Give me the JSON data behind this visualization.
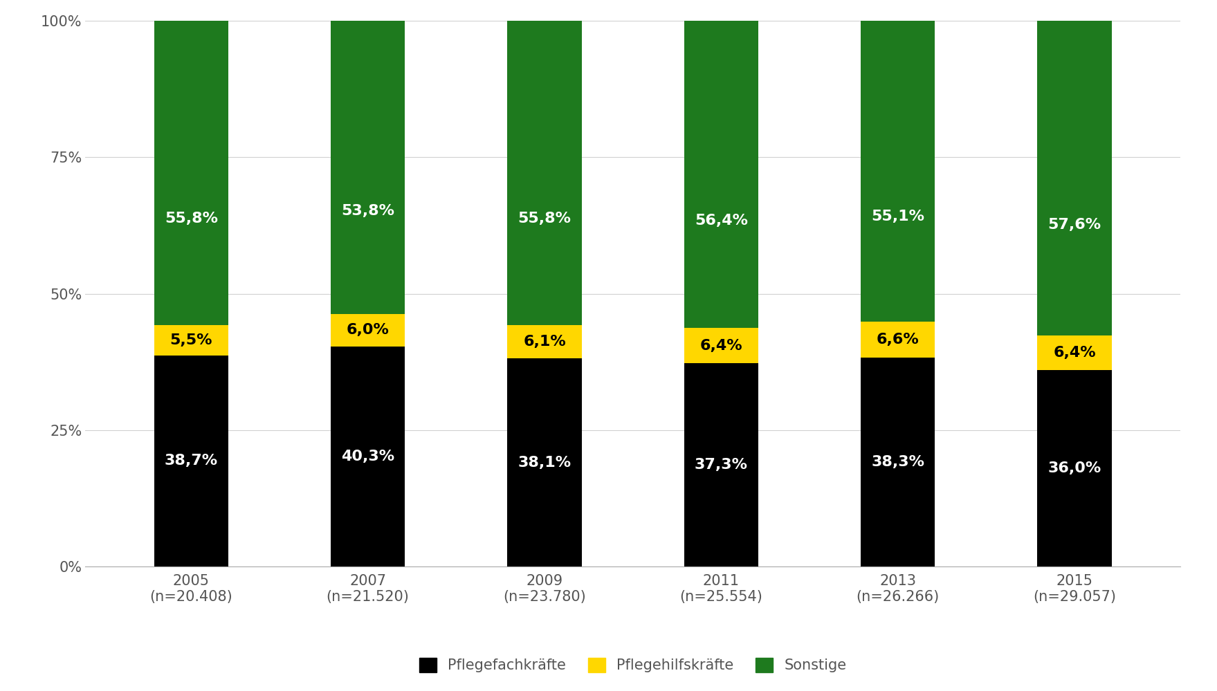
{
  "years": [
    "2005\n(n=20.408)",
    "2007\n(n=21.520)",
    "2009\n(n=23.780)",
    "2011\n(n=25.554)",
    "2013\n(n=26.266)",
    "2015\n(n=29.057)"
  ],
  "pflegefach": [
    38.7,
    40.3,
    38.1,
    37.3,
    38.3,
    36.0
  ],
  "pflegehilfs": [
    5.5,
    6.0,
    6.1,
    6.4,
    6.6,
    6.4
  ],
  "sonstige": [
    55.8,
    53.8,
    55.8,
    56.4,
    55.1,
    57.6
  ],
  "pflegefach_labels": [
    "38,7%",
    "40,3%",
    "38,1%",
    "37,3%",
    "38,3%",
    "36,0%"
  ],
  "pflegehilfs_labels": [
    "5,5%",
    "6,0%",
    "6,1%",
    "6,4%",
    "6,6%",
    "6,4%"
  ],
  "sonstige_labels": [
    "55,8%",
    "53,8%",
    "55,8%",
    "56,4%",
    "55,1%",
    "57,6%"
  ],
  "color_pflegefach": "#000000",
  "color_pflegehilfs": "#FFD700",
  "color_sonstige": "#1E7A1E",
  "legend_pflegefach": "Pflegefachkräfte",
  "legend_pflegehilfs": "Pflegehilfskräfte",
  "legend_sonstige": "Sonstige",
  "yticks": [
    0,
    25,
    50,
    75,
    100
  ],
  "ytick_labels": [
    "0%",
    "25%",
    "50%",
    "75%",
    "100%"
  ],
  "background_color": "#ffffff",
  "bar_width": 0.42,
  "label_fontsize": 16,
  "tick_fontsize": 15,
  "legend_fontsize": 15
}
